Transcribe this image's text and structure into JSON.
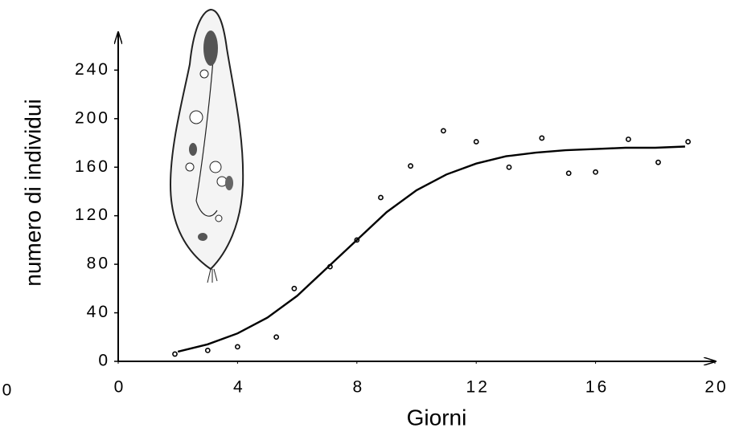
{
  "chart_data": {
    "type": "scatter",
    "x_label": "Giorni",
    "y_label": "numero di individui",
    "annotation": "0",
    "xlim": [
      0,
      20
    ],
    "xticks": [
      0,
      4,
      8,
      12,
      16,
      20
    ],
    "ylim": [
      0,
      270
    ],
    "yticks": [
      0,
      40,
      80,
      120,
      160,
      200,
      240
    ],
    "series": [
      {
        "mark": "circle",
        "color": "#000000",
        "x": [
          1.9,
          3.0,
          4.0,
          5.3,
          5.9,
          7.1,
          8.0,
          8.8,
          9.8,
          10.9,
          12.0,
          13.1,
          14.2,
          15.1,
          16.0,
          17.1,
          18.1,
          19.1
        ],
        "values": [
          6,
          9,
          12,
          20,
          60,
          78,
          100,
          135,
          161,
          190,
          181,
          160,
          184,
          155,
          156,
          183,
          164,
          181
        ]
      },
      {
        "mark": "line",
        "color": "#000000",
        "x": [
          2,
          3,
          4,
          5,
          6,
          7,
          8,
          9,
          10,
          11,
          12,
          13,
          14,
          15,
          16,
          17,
          18,
          19
        ],
        "values": [
          8,
          14,
          23,
          36,
          54,
          77,
          100,
          123,
          141,
          154,
          163,
          169,
          172,
          174,
          175,
          176,
          176,
          177
        ]
      }
    ]
  }
}
